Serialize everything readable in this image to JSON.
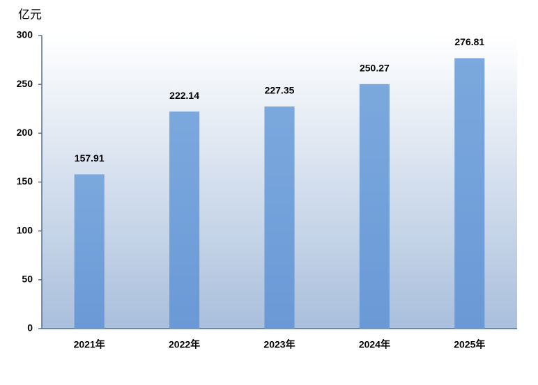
{
  "chart_data": {
    "type": "bar",
    "y_label": "亿元",
    "categories": [
      "2021年",
      "2022年",
      "2023年",
      "2024年",
      "2025年"
    ],
    "values": [
      157.91,
      222.14,
      227.35,
      250.27,
      276.81
    ],
    "color": "#6f9fd8",
    "ylim": [
      0,
      300
    ],
    "yticks": [
      0,
      50,
      100,
      150,
      200,
      250,
      300
    ],
    "grid": false
  }
}
